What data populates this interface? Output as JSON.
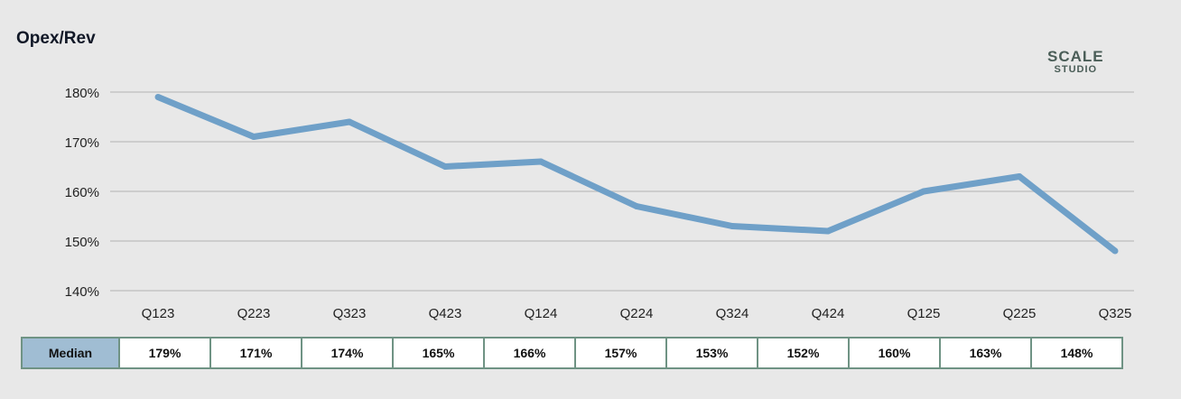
{
  "chart_data": {
    "type": "line",
    "title": "Opex/Rev",
    "categories": [
      "Q123",
      "Q223",
      "Q323",
      "Q423",
      "Q124",
      "Q224",
      "Q324",
      "Q424",
      "Q125",
      "Q225",
      "Q325"
    ],
    "series": [
      {
        "name": "Median",
        "values": [
          179,
          171,
          174,
          165,
          166,
          157,
          153,
          152,
          160,
          163,
          148
        ]
      }
    ],
    "value_labels": [
      "179%",
      "171%",
      "174%",
      "165%",
      "166%",
      "157%",
      "153%",
      "152%",
      "160%",
      "163%",
      "148%"
    ],
    "yticks": [
      "140%",
      "150%",
      "160%",
      "170%",
      "180%"
    ],
    "ytick_values": [
      140,
      150,
      160,
      170,
      180
    ],
    "ylim": [
      140,
      180
    ],
    "grid": true,
    "line_color": "#6fa0c8",
    "table_label": "Median"
  },
  "logo": {
    "line1": "SCALE",
    "line2": "STUDIO"
  }
}
